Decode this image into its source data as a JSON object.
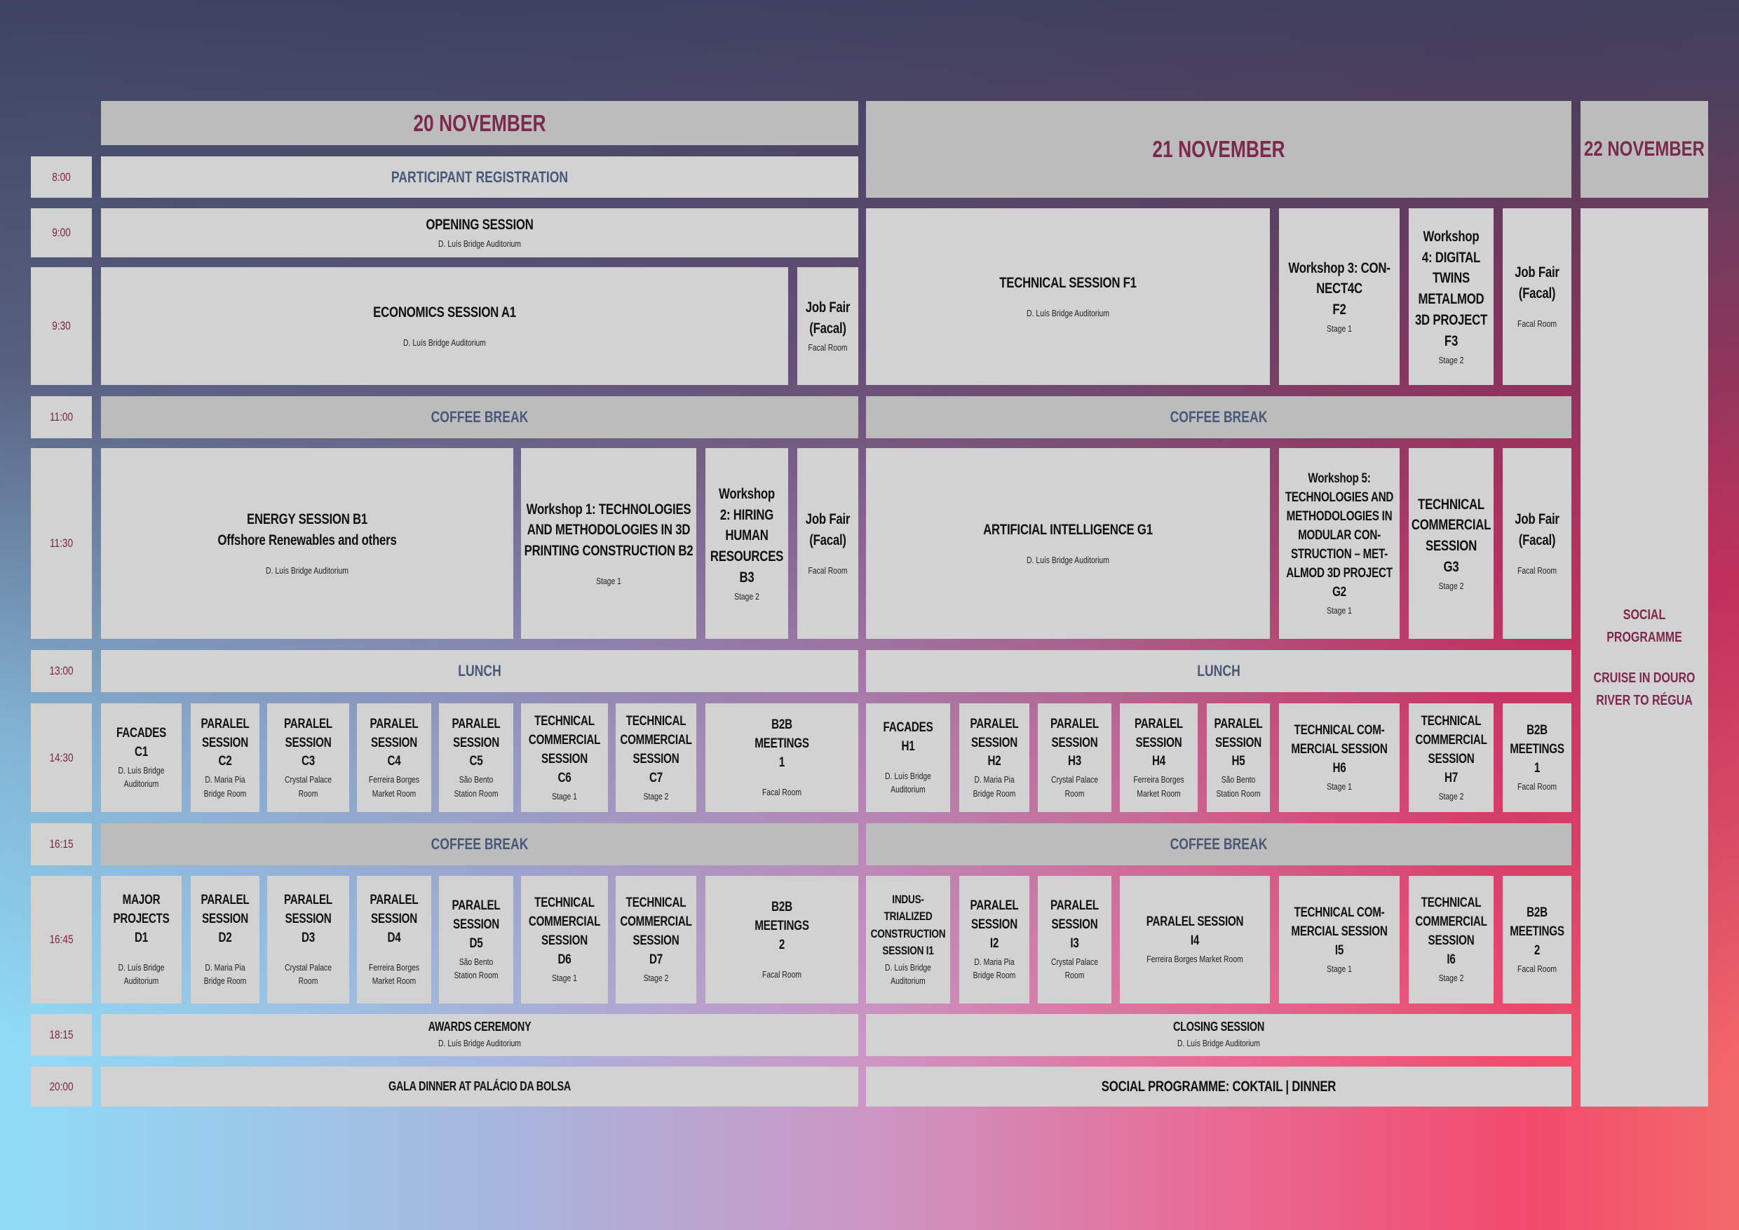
{
  "days": {
    "d20": "20 NOVEMBER",
    "d21": "21 NOVEMBER",
    "d22": "22 NOVEMBER"
  },
  "times": [
    "8:00",
    "9:00",
    "9:30",
    "11:00",
    "11:30",
    "13:00",
    "14:30",
    "16:15",
    "16:45",
    "18:15",
    "20:00"
  ],
  "day20": {
    "registration": "PARTICIPANT REGISTRATION",
    "opening": {
      "title": "OPENING SESSION",
      "room": "D. Luís Bridge Auditorium"
    },
    "a1": {
      "title": "ECONOMICS SESSION A1",
      "room": "D. Luís Bridge Auditorium"
    },
    "jobfair_a": {
      "title": "Job Fair\n(Facal)",
      "room": "Facal Room"
    },
    "coffee1": "COFFEE BREAK",
    "b1": {
      "title": "ENERGY SESSION B1",
      "subtitle": "Offshore Renewables and others",
      "room": "D. Luís Bridge Auditorium"
    },
    "b2": {
      "title": "Workshop 1: TECHNOLOGIES\nAND METHODOLOGIES IN 3D\nPRINTING CONSTRUCTION B2",
      "room": "Stage 1"
    },
    "b3": {
      "title": "Workshop\n2: HIRING\nHUMAN\nRESOURCES\nB3",
      "room": "Stage 2"
    },
    "jobfair_b": {
      "title": "Job Fair\n(Facal)",
      "room": "Facal Room"
    },
    "lunch": "LUNCH",
    "c": [
      {
        "title": "FACADES\nC1",
        "room": "D. Luís Bridge\nAuditorium"
      },
      {
        "title": "PARALEL\nSESSION\nC2",
        "room": "D. Maria Pia\nBridge Room"
      },
      {
        "title": "PARALEL\nSESSION\nC3",
        "room": "Crystal Palace\nRoom"
      },
      {
        "title": "PARALEL\nSESSION\nC4",
        "room": "Ferreira Borges\nMarket Room"
      },
      {
        "title": "PARALEL\nSESSION\nC5",
        "room": "São Bento\nStation Room"
      },
      {
        "title": "TECHNICAL\nCOMMERCIAL\nSESSION\nC6",
        "room": "Stage 1"
      },
      {
        "title": "TECHNICAL\nCOMMERCIAL\nSESSION\nC7",
        "room": "Stage 2"
      },
      {
        "title": "B2B\nMEETINGS\n1",
        "room": "Facal Room"
      }
    ],
    "coffee2": "COFFEE BREAK",
    "d": [
      {
        "title": "MAJOR\nPROJECTS\nD1",
        "room": "D. Luís Bridge\nAuditorium"
      },
      {
        "title": "PARALEL\nSESSION\nD2",
        "room": "D. Maria Pia\nBridge Room"
      },
      {
        "title": "PARALEL\nSESSION\nD3",
        "room": "Crystal Palace\nRoom"
      },
      {
        "title": "PARALEL\nSESSION\nD4",
        "room": "Ferreira Borges\nMarket Room"
      },
      {
        "title": "PARALEL\nSESSION\nD5",
        "room": "São Bento\nStation Room"
      },
      {
        "title": "TECHNICAL\nCOMMERCIAL\nSESSION\nD6",
        "room": "Stage 1"
      },
      {
        "title": "TECHNICAL\nCOMMERCIAL\nSESSION\nD7",
        "room": "Stage 2"
      },
      {
        "title": "B2B\nMEETINGS\n2",
        "room": "Facal Room"
      }
    ],
    "awards": {
      "title": "AWARDS CEREMONY",
      "room": "D. Luís Bridge Auditorium"
    },
    "gala": "GALA DINNER AT PALÁCIO DA BOLSA"
  },
  "day21": {
    "f1": {
      "title": "TECHNICAL SESSION F1",
      "room": "D. Luís Bridge Auditorium"
    },
    "f2": {
      "title": "Workshop 3: CON-\nNECT4C\nF2",
      "room": "Stage 1"
    },
    "f3": {
      "title": "Workshop\n4: DIGITAL\nTWINS\nMETALMOD\n3D PROJECT\nF3",
      "room": "Stage 2"
    },
    "jobfair_f": {
      "title": "Job Fair\n(Facal)",
      "room": "Facal Room"
    },
    "coffee1": "COFFEE BREAK",
    "g1": {
      "title": "ARTIFICIAL INTELLIGENCE G1",
      "room": "D. Luís Bridge Auditorium"
    },
    "g2": {
      "title": "Workshop 5:\nTECHNOLOGIES AND\nMETHODOLOGIES IN\nMODULAR CON-\nSTRUCTION – MET-\nALMOD 3D PROJECT\nG2",
      "room": "Stage 1"
    },
    "g3": {
      "title": "TECHNICAL\nCOMMERCIAL\nSESSION\nG3",
      "room": "Stage 2"
    },
    "jobfair_g": {
      "title": "Job Fair\n(Facal)",
      "room": "Facal Room"
    },
    "lunch": "LUNCH",
    "h": [
      {
        "title": "FACADES\nH1",
        "room": "D. Luís Bridge\nAuditorium"
      },
      {
        "title": "PARALEL\nSESSION\nH2",
        "room": "D. Maria Pia\nBridge Room"
      },
      {
        "title": "PARALEL\nSESSION\nH3",
        "room": "Crystal Palace\nRoom"
      },
      {
        "title": "PARALEL\nSESSION\nH4",
        "room": "Ferreira Borges\nMarket Room"
      },
      {
        "title": "PARALEL\nSESSION\nH5",
        "room": "São Bento\nStation Room"
      },
      {
        "title": "TECHNICAL COM-\nMERCIAL SESSION\nH6",
        "room": "Stage 1"
      },
      {
        "title": "TECHNICAL\nCOMMERCIAL\nSESSION\nH7",
        "room": "Stage 2"
      },
      {
        "title": "B2B\nMEETINGS\n1",
        "room": "Facal Room"
      }
    ],
    "coffee2": "COFFEE BREAK",
    "i": [
      {
        "title": "INDUS-\nTRIALIZED\nCONSTRUCTION\nSESSION I1",
        "room": "D. Luís Bridge\nAuditorium"
      },
      {
        "title": "PARALEL\nSESSION\nI2",
        "room": "D. Maria Pia\nBridge Room"
      },
      {
        "title": "PARALEL\nSESSION\nI3",
        "room": "Crystal Palace\nRoom"
      },
      {
        "title": "PARALEL SESSION\nI4",
        "room": "Ferreira Borges Market Room"
      },
      {
        "title": "TECHNICAL COM-\nMERCIAL SESSION\nI5",
        "room": "Stage 1"
      },
      {
        "title": "TECHNICAL\nCOMMERCIAL\nSESSION\nI6",
        "room": "Stage 2"
      },
      {
        "title": "B2B\nMEETINGS\n2",
        "room": "Facal Room"
      }
    ],
    "closing": {
      "title": "CLOSING SESSION",
      "room": "D. Luís Bridge Auditorium"
    },
    "social": "SOCIAL PROGRAMME: COKTAIL | DINNER"
  },
  "day22": {
    "social": "SOCIAL\nPROGRAMME",
    "cruise": "CRUISE IN DOURO\nRIVER TO RÉGUA"
  },
  "colors": {
    "cell": "#d2d2d2",
    "break": "#bcbcbc",
    "accent": "#7c2a4c",
    "break_text": "#4a5878"
  }
}
